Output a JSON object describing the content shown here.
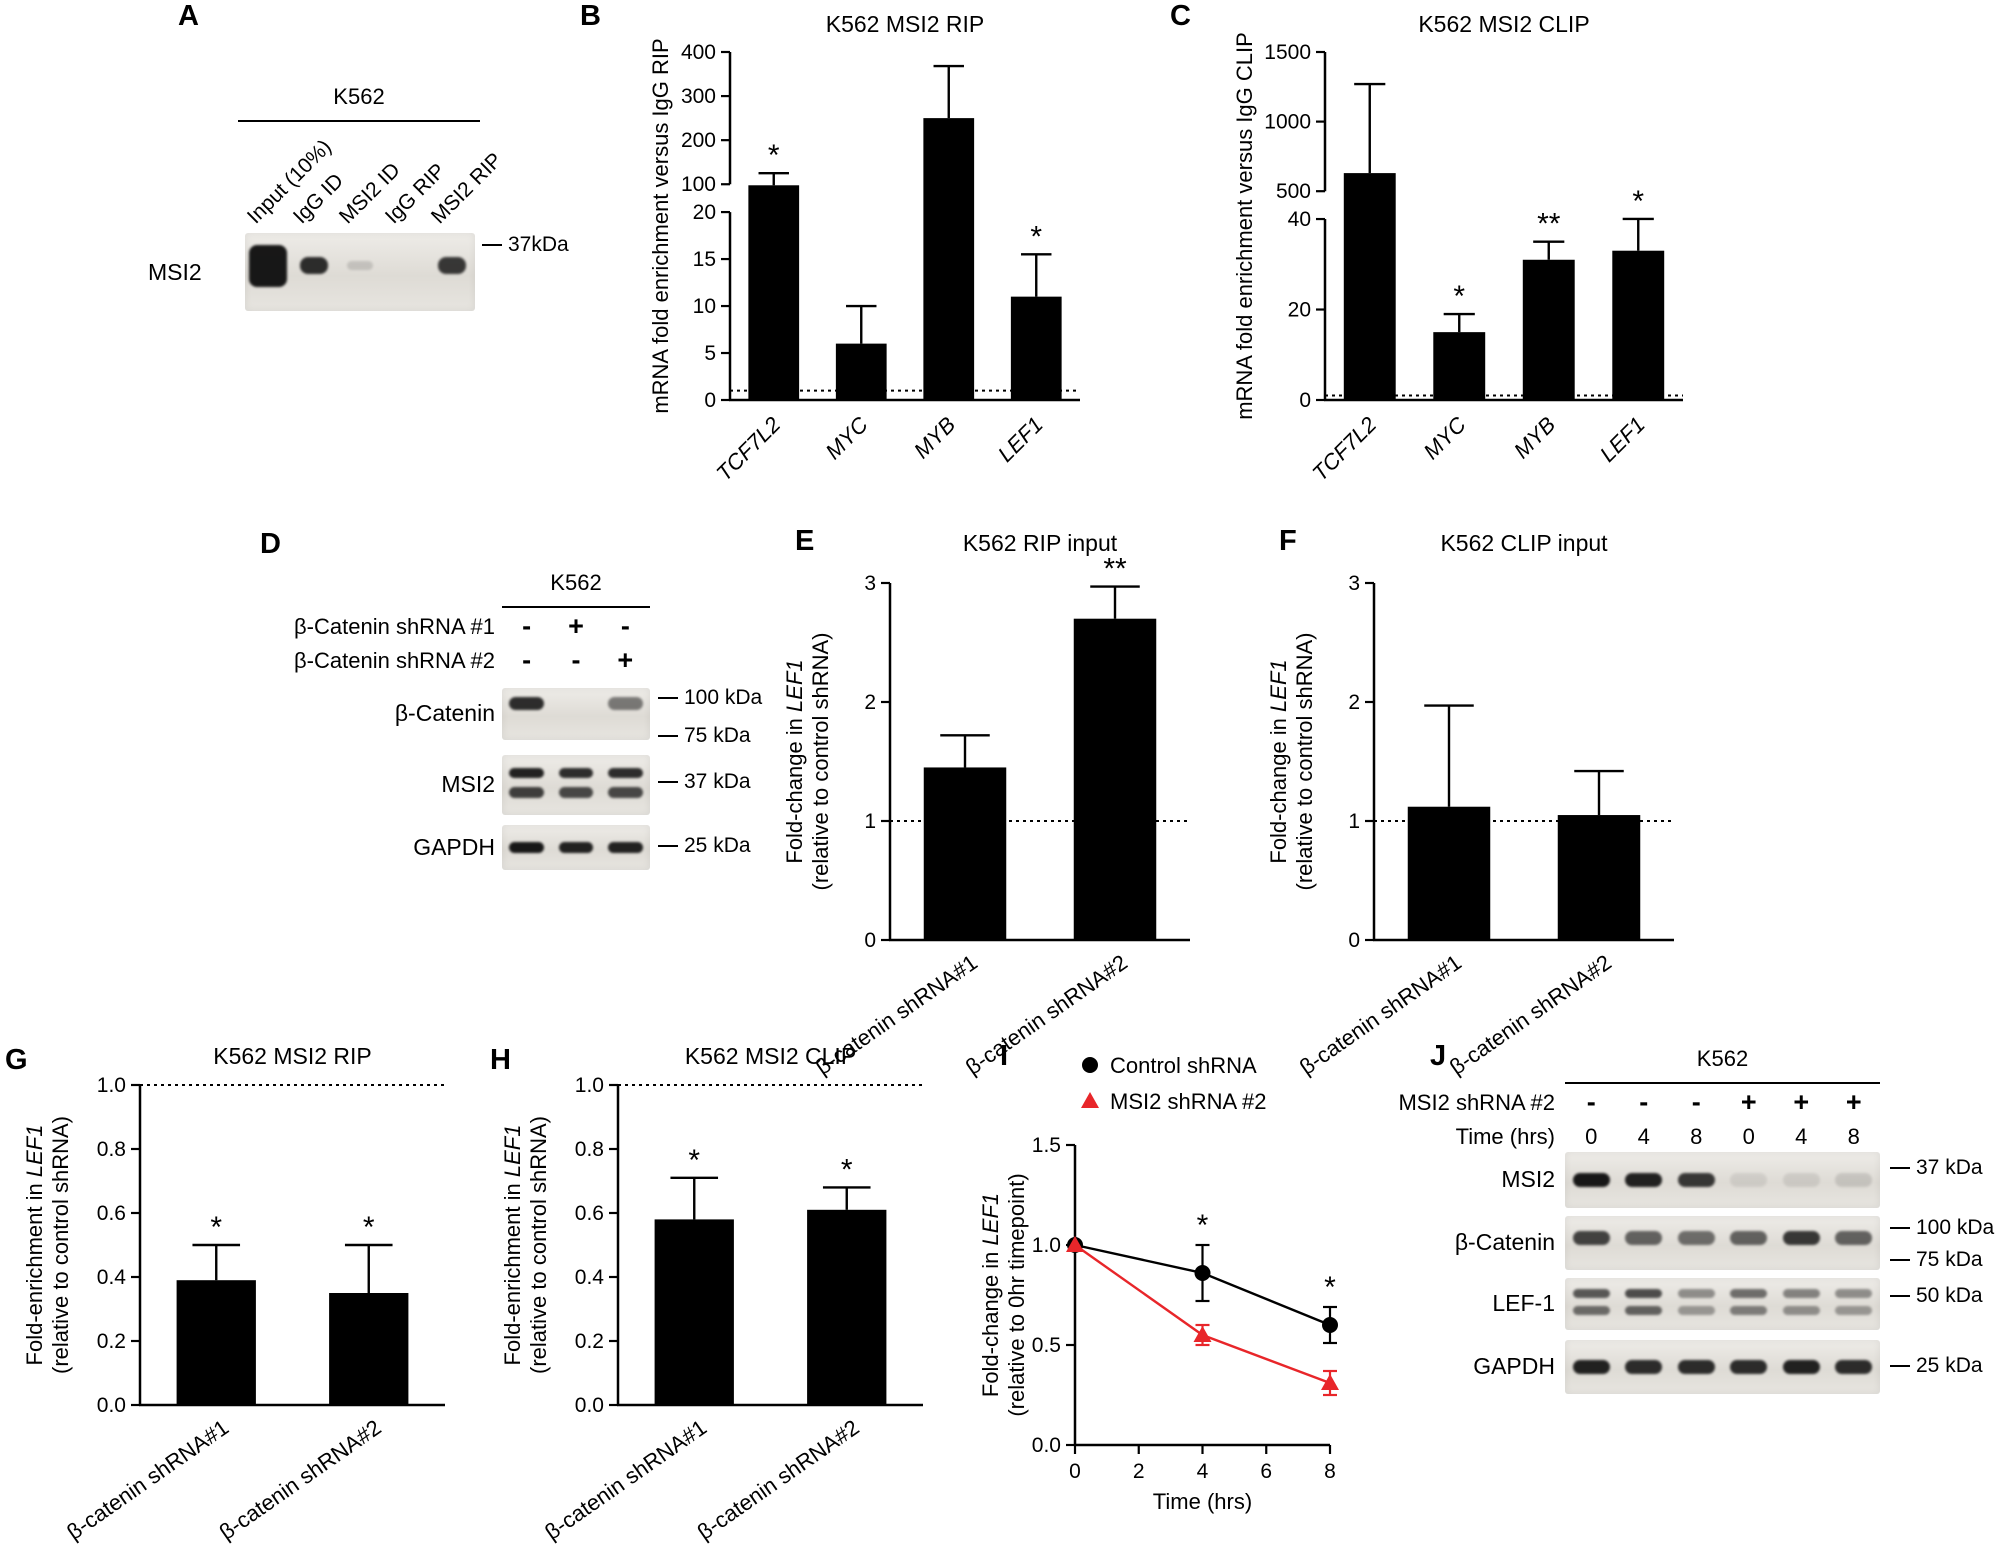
{
  "figure": {
    "background": "#ffffff",
    "accent_red": "#e8262a",
    "band_color": "#0d0d0d"
  },
  "panel_labels": {
    "A": "A",
    "B": "B",
    "C": "C",
    "D": "D",
    "E": "E",
    "F": "F",
    "G": "G",
    "H": "H",
    "I": "I",
    "J": "J"
  },
  "blots": {
    "A": {
      "cell_line": "K562",
      "lane_labels": [
        "Input (10%)",
        "IgG ID",
        "MSI2 ID",
        "IgG RIP",
        "MSI2 RIP"
      ],
      "rows": [
        {
          "name": "MSI2",
          "markers": [
            "37kDa"
          ],
          "bands": [
            0.95,
            0.85,
            0.14,
            0,
            0.8
          ]
        }
      ]
    },
    "D": {
      "cell_line": "K562",
      "conditions": [
        {
          "name": "β-Catenin shRNA #1",
          "values": [
            "-",
            "+",
            "-"
          ]
        },
        {
          "name": "β-Catenin shRNA #2",
          "values": [
            "-",
            "-",
            "+"
          ]
        }
      ],
      "rows": [
        {
          "name": "β-Catenin",
          "markers": [
            "100 kDa",
            "75 kDa"
          ],
          "bands": [
            0.85,
            0,
            0.5
          ]
        },
        {
          "name": "MSI2",
          "markers": [
            "37 kDa"
          ],
          "bands": [
            0.9,
            0.85,
            0.85
          ],
          "double": true
        },
        {
          "name": "GAPDH",
          "markers": [
            "25 kDa"
          ],
          "bands": [
            0.95,
            0.9,
            0.9
          ]
        }
      ]
    },
    "J": {
      "cell_line": "K562",
      "conditions": [
        {
          "name": "MSI2 shRNA #2",
          "values": [
            "-",
            "-",
            "-",
            "+",
            "+",
            "+"
          ]
        },
        {
          "name": "Time (hrs)",
          "values": [
            "0",
            "4",
            "8",
            "0",
            "4",
            "8"
          ]
        }
      ],
      "rows": [
        {
          "name": "MSI2",
          "markers": [
            "37 kDa"
          ],
          "bands": [
            0.95,
            0.9,
            0.8,
            0.08,
            0.09,
            0.12
          ]
        },
        {
          "name": "β-Catenin",
          "markers": [
            "100 kDa",
            "75 kDa"
          ],
          "bands": [
            0.75,
            0.6,
            0.55,
            0.6,
            0.8,
            0.6
          ]
        },
        {
          "name": "LEF-1",
          "markers": [
            "50 kDa"
          ],
          "bands": [
            0.65,
            0.7,
            0.4,
            0.55,
            0.45,
            0.4
          ],
          "double": true
        },
        {
          "name": "GAPDH",
          "markers": [
            "25 kDa"
          ],
          "bands": [
            0.9,
            0.85,
            0.85,
            0.85,
            0.9,
            0.85
          ]
        }
      ]
    }
  },
  "chart_data": [
    {
      "id": "B",
      "type": "bar",
      "title": "K562 MSI2 RIP",
      "ylabel": "mRNA fold enrichment versus IgG RIP",
      "categories": [
        "TCF7L2",
        "MYC",
        "MYB",
        "LEF1"
      ],
      "values": [
        97,
        6,
        250,
        11
      ],
      "errors": [
        28,
        4,
        118,
        4.5
      ],
      "sig": [
        "*",
        "",
        "",
        "*"
      ],
      "baseline": 1,
      "italic_categories": true,
      "segments": [
        {
          "range": [
            0,
            20
          ],
          "ticks": [
            0,
            5,
            10,
            15,
            20
          ],
          "frac": [
            0,
            0.54
          ]
        },
        {
          "range": [
            100,
            400
          ],
          "ticks": [
            100,
            200,
            300,
            400
          ],
          "frac": [
            0.62,
            1
          ]
        }
      ]
    },
    {
      "id": "C",
      "type": "bar",
      "title": "K562 MSI2 CLIP",
      "ylabel": "mRNA fold enrichment versus IgG CLIP",
      "categories": [
        "TCF7L2",
        "MYC",
        "MYB",
        "LEF1"
      ],
      "values": [
        630,
        15,
        31,
        33
      ],
      "errors": [
        640,
        4,
        4,
        8
      ],
      "sig": [
        "",
        "*",
        "**",
        "*"
      ],
      "baseline": 1,
      "italic_categories": true,
      "segments": [
        {
          "range": [
            0,
            40
          ],
          "ticks": [
            0,
            20,
            40
          ],
          "frac": [
            0,
            0.52
          ]
        },
        {
          "range": [
            500,
            1500
          ],
          "ticks": [
            500,
            1000,
            1500
          ],
          "frac": [
            0.6,
            1
          ]
        }
      ]
    },
    {
      "id": "E",
      "type": "bar",
      "title": "K562 RIP input",
      "ylabel_lines": [
        "Fold-change in LEF1",
        "(relative to control shRNA)"
      ],
      "italic_token": "LEF1",
      "categories": [
        "β-catenin shRNA#1",
        "β-catenin shRNA#2"
      ],
      "values": [
        1.45,
        2.7
      ],
      "errors": [
        0.27,
        0.27
      ],
      "sig": [
        "",
        "**"
      ],
      "baseline": 1,
      "ylim": [
        0,
        3
      ],
      "yticks": [
        0,
        1,
        2,
        3
      ],
      "ytick_decimals": 0
    },
    {
      "id": "F",
      "type": "bar",
      "title": "K562 CLIP input",
      "ylabel_lines": [
        "Fold-change in LEF1",
        "(relative to control shRNA)"
      ],
      "italic_token": "LEF1",
      "categories": [
        "β-catenin shRNA#1",
        "β-catenin shRNA#2"
      ],
      "values": [
        1.12,
        1.05
      ],
      "errors": [
        0.85,
        0.37
      ],
      "sig": [
        "",
        ""
      ],
      "baseline": 1,
      "ylim": [
        0,
        3
      ],
      "yticks": [
        0,
        1,
        2,
        3
      ],
      "ytick_decimals": 0
    },
    {
      "id": "G",
      "type": "bar",
      "title": "K562 MSI2 RIP",
      "ylabel_lines": [
        "Fold-enrichment in LEF1",
        "(relative to control shRNA)"
      ],
      "italic_token": "LEF1",
      "categories": [
        "β-catenin shRNA#1",
        "β-catenin shRNA#2"
      ],
      "values": [
        0.39,
        0.35
      ],
      "errors": [
        0.11,
        0.15
      ],
      "sig": [
        "*",
        "*"
      ],
      "baseline": 1,
      "ylim": [
        0,
        1
      ],
      "yticks": [
        0,
        0.2,
        0.4,
        0.6,
        0.8,
        1
      ],
      "ytick_decimals": 1
    },
    {
      "id": "H",
      "type": "bar",
      "title": "K562 MSI2 CLIP",
      "ylabel_lines": [
        "Fold-enrichment in LEF1",
        "(relative to control shRNA)"
      ],
      "italic_token": "LEF1",
      "categories": [
        "β-catenin shRNA#1",
        "β-catenin shRNA#2"
      ],
      "values": [
        0.58,
        0.61
      ],
      "errors": [
        0.13,
        0.07
      ],
      "sig": [
        "*",
        "*"
      ],
      "baseline": 1,
      "ylim": [
        0,
        1
      ],
      "yticks": [
        0,
        0.2,
        0.4,
        0.6,
        0.8,
        1
      ],
      "ytick_decimals": 1
    },
    {
      "id": "I",
      "type": "line",
      "ylabel_lines": [
        "Fold-change in LEF1",
        "(relative to 0hr timepoint)"
      ],
      "italic_token": "LEF1",
      "xlabel": "Time (hrs)",
      "x": [
        0,
        4,
        8
      ],
      "series": [
        {
          "name": "Control shRNA",
          "color": "#000000",
          "marker": "circle",
          "values": [
            1.0,
            0.86,
            0.6
          ],
          "errors": [
            0,
            0.14,
            0.09
          ]
        },
        {
          "name": "MSI2 shRNA #2",
          "color": "#e8262a",
          "marker": "triangle",
          "values": [
            1.0,
            0.55,
            0.31
          ],
          "errors": [
            0,
            0.05,
            0.06
          ]
        }
      ],
      "sig_points": [
        {
          "x": 4,
          "label": "*"
        },
        {
          "x": 8,
          "label": "*"
        }
      ],
      "ylim": [
        0,
        1.5
      ],
      "yticks": [
        0,
        0.5,
        1,
        1.5
      ],
      "ytick_decimals": 1,
      "xlim": [
        0,
        8
      ],
      "xticks": [
        0,
        2,
        4,
        6,
        8
      ],
      "legend_position": "top"
    }
  ]
}
